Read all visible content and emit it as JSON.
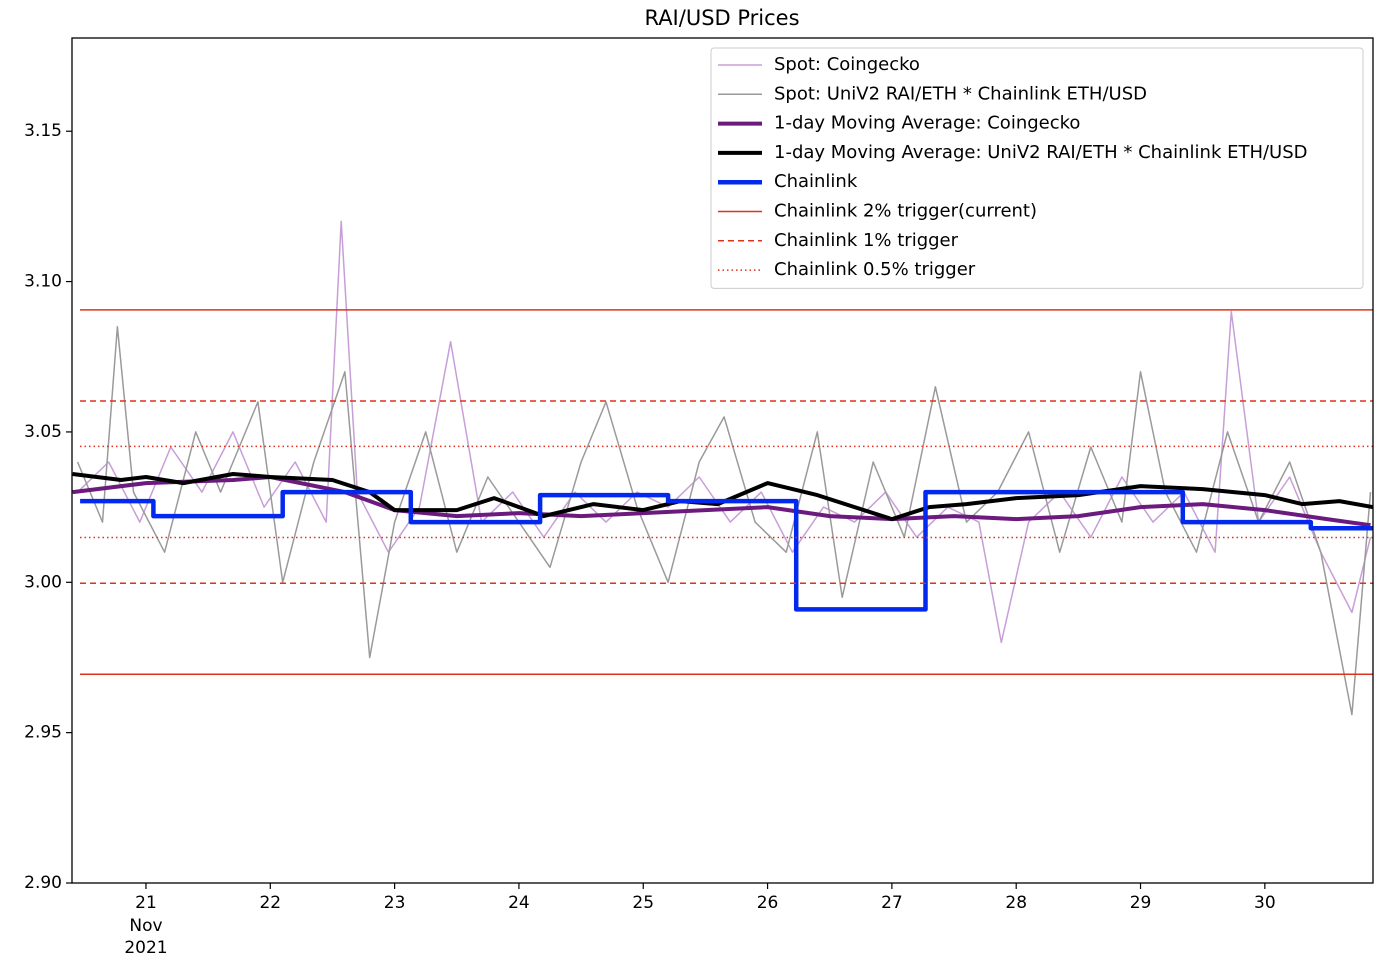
{
  "chart_data": {
    "type": "line",
    "title": "RAI/USD Prices",
    "xlim": [
      20.405,
      30.87
    ],
    "ylim": [
      2.9,
      3.181
    ],
    "xticks": [
      21,
      22,
      23,
      24,
      25,
      26,
      27,
      28,
      29,
      30
    ],
    "x_sublabels": [
      "Nov",
      "2021"
    ],
    "yticks": [
      {
        "value": 2.9,
        "label": "2.90"
      },
      {
        "value": 2.95,
        "label": "2.95"
      },
      {
        "value": 3.0,
        "label": "3.00"
      },
      {
        "value": 3.05,
        "label": "3.05"
      },
      {
        "value": 3.1,
        "label": "3.10"
      },
      {
        "value": 3.15,
        "label": "3.15"
      }
    ],
    "legend": "upper right",
    "series": [
      {
        "name": "Spot: Coingecko",
        "color": "#c89ed8",
        "width": 1.5,
        "x": [
          20.45,
          20.7,
          20.95,
          21.2,
          21.45,
          21.7,
          21.95,
          22.2,
          22.45,
          22.57,
          22.7,
          22.95,
          23.2,
          23.45,
          23.7,
          23.95,
          24.2,
          24.45,
          24.7,
          24.95,
          25.2,
          25.45,
          25.7,
          25.95,
          26.2,
          26.45,
          26.7,
          26.95,
          27.2,
          27.45,
          27.7,
          27.88,
          28.1,
          28.35,
          28.6,
          28.85,
          29.1,
          29.35,
          29.6,
          29.73,
          29.95,
          30.2,
          30.45,
          30.7,
          30.85
        ],
        "values": [
          3.03,
          3.04,
          3.02,
          3.045,
          3.03,
          3.05,
          3.025,
          3.04,
          3.02,
          3.12,
          3.03,
          3.01,
          3.025,
          3.08,
          3.02,
          3.03,
          3.015,
          3.03,
          3.02,
          3.03,
          3.025,
          3.035,
          3.02,
          3.03,
          3.01,
          3.025,
          3.02,
          3.03,
          3.015,
          3.025,
          3.02,
          2.98,
          3.02,
          3.03,
          3.015,
          3.035,
          3.02,
          3.03,
          3.01,
          3.09,
          3.02,
          3.035,
          3.01,
          2.99,
          3.015
        ]
      },
      {
        "name": "Spot: UniV2 RAI/ETH * Chainlink ETH/USD",
        "color": "#9a9a9a",
        "width": 1.5,
        "x": [
          20.45,
          20.65,
          20.77,
          20.9,
          21.15,
          21.4,
          21.6,
          21.9,
          22.1,
          22.35,
          22.6,
          22.8,
          23.0,
          23.25,
          23.5,
          23.75,
          24.0,
          24.25,
          24.5,
          24.7,
          24.95,
          25.2,
          25.45,
          25.65,
          25.9,
          26.15,
          26.4,
          26.6,
          26.85,
          27.1,
          27.35,
          27.6,
          27.85,
          28.1,
          28.35,
          28.6,
          28.85,
          29.0,
          29.2,
          29.45,
          29.7,
          29.95,
          30.2,
          30.45,
          30.7,
          30.85
        ],
        "values": [
          3.04,
          3.02,
          3.085,
          3.03,
          3.01,
          3.05,
          3.03,
          3.06,
          3.0,
          3.04,
          3.07,
          2.975,
          3.02,
          3.05,
          3.01,
          3.035,
          3.02,
          3.005,
          3.04,
          3.06,
          3.025,
          3.0,
          3.04,
          3.055,
          3.02,
          3.01,
          3.05,
          2.995,
          3.04,
          3.015,
          3.065,
          3.02,
          3.03,
          3.05,
          3.01,
          3.045,
          3.02,
          3.07,
          3.03,
          3.01,
          3.05,
          3.02,
          3.04,
          3.01,
          2.956,
          3.03
        ]
      },
      {
        "name": "1-day Moving Average: Coingecko",
        "color": "#6b1a7e",
        "width": 4,
        "x": [
          20.41,
          21,
          21.7,
          22,
          22.6,
          23,
          23.5,
          24,
          24.5,
          25,
          25.5,
          26,
          26.5,
          27,
          27.5,
          28,
          28.5,
          29,
          29.5,
          30,
          30.5,
          30.85
        ],
        "values": [
          3.03,
          3.033,
          3.034,
          3.035,
          3.03,
          3.024,
          3.022,
          3.023,
          3.022,
          3.023,
          3.024,
          3.025,
          3.022,
          3.021,
          3.022,
          3.021,
          3.022,
          3.025,
          3.026,
          3.024,
          3.021,
          3.019
        ]
      },
      {
        "name": "1-day Moving Average: UniV2 RAI/ETH * Chainlink ETH/USD",
        "color": "#000000",
        "width": 4,
        "x": [
          20.41,
          20.8,
          21,
          21.3,
          21.7,
          22,
          22.5,
          22.8,
          23,
          23.5,
          23.8,
          24.2,
          24.6,
          25,
          25.3,
          25.6,
          26,
          26.4,
          26.7,
          27,
          27.3,
          27.6,
          28,
          28.5,
          29,
          29.5,
          30,
          30.3,
          30.6,
          30.87
        ],
        "values": [
          3.036,
          3.034,
          3.035,
          3.033,
          3.036,
          3.035,
          3.034,
          3.03,
          3.024,
          3.024,
          3.028,
          3.022,
          3.026,
          3.024,
          3.027,
          3.026,
          3.033,
          3.029,
          3.025,
          3.021,
          3.025,
          3.026,
          3.028,
          3.029,
          3.032,
          3.031,
          3.029,
          3.026,
          3.027,
          3.025
        ]
      },
      {
        "name": "Chainlink",
        "color": "#0328ee",
        "width": 4.5,
        "drawstyle": "steps-post",
        "x": [
          20.47,
          21.06,
          22.1,
          23.13,
          24.17,
          25.2,
          26.23,
          27.27,
          29.34,
          30.37,
          30.87
        ],
        "values": [
          3.027,
          3.022,
          3.03,
          3.02,
          3.029,
          3.027,
          2.991,
          3.03,
          3.02,
          3.018,
          3.018
        ]
      },
      {
        "name": "Chainlink 2% trigger(current)",
        "color": "#e0301e",
        "width": 1.5,
        "hlines": [
          3.0906,
          2.9694
        ]
      },
      {
        "name": "Chainlink 1% trigger",
        "color": "#e0301e",
        "width": 1.5,
        "dash": "6,4",
        "hlines": [
          3.0603,
          2.9997
        ]
      },
      {
        "name": "Chainlink 0.5% trigger",
        "color": "#e0301e",
        "width": 1.5,
        "dash": "1.5,3",
        "hlines": [
          3.0452,
          3.0149
        ]
      }
    ]
  }
}
